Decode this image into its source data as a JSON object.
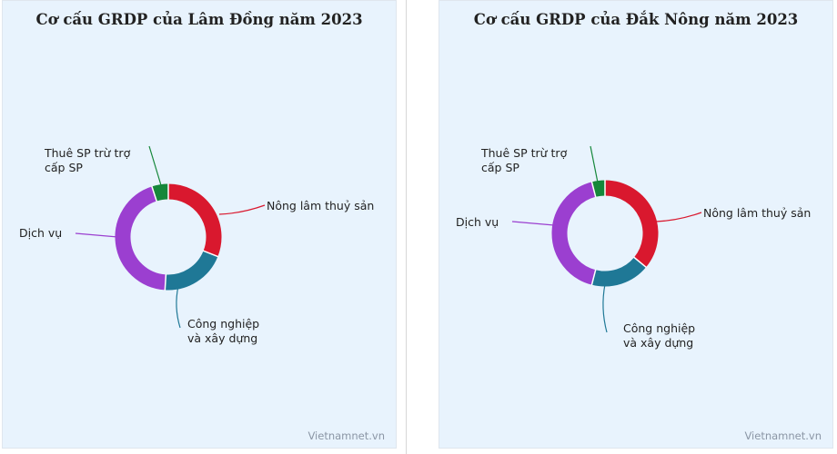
{
  "chart_data": [
    {
      "type": "pie",
      "title": "Cơ cấu GRDP của Lâm Đồng năm 2023",
      "categories": [
        "Nông lâm thuỷ sản",
        "Công nghiệp\nvà xây dựng",
        "Dịch vụ",
        "Thuê SP trừ trợ\ncấp SP"
      ],
      "values": [
        31,
        20,
        44,
        5
      ],
      "colors": [
        "#d9182e",
        "#1f7896",
        "#9b3fd0",
        "#15873a"
      ],
      "credit": "Vietnamnet.vn"
    },
    {
      "type": "pie",
      "title": "Cơ cấu GRDP của Đắk Nông năm 2023",
      "categories": [
        "Nông lâm thuỷ sản",
        "Công nghiệp\nvà xây dựng",
        "Dịch vụ",
        "Thuê SP trừ trợ\ncấp SP"
      ],
      "values": [
        36,
        18,
        42,
        4
      ],
      "colors": [
        "#d9182e",
        "#1f7896",
        "#9b3fd0",
        "#15873a"
      ],
      "credit": "Vietnamnet.vn"
    }
  ]
}
